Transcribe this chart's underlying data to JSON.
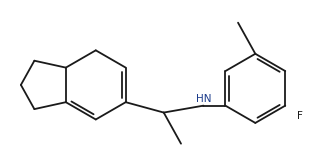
{
  "bg_color": "#ffffff",
  "line_color": "#1a1a1a",
  "hn_color": "#1a3a8a",
  "f_color": "#1a1a1a",
  "line_width": 1.3,
  "figsize": [
    3.14,
    1.49
  ],
  "dpi": 100,
  "xlim": [
    0,
    10
  ],
  "ylim": [
    0,
    4.76
  ]
}
